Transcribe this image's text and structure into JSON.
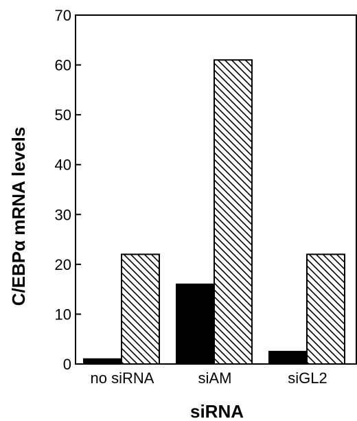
{
  "chart_data": {
    "type": "bar",
    "title": "",
    "xlabel": "siRNA",
    "ylabel": "C/EBPα mRNA levels",
    "categories": [
      "no siRNA",
      "siAM",
      "siGL2"
    ],
    "series": [
      {
        "values": [
          1,
          16,
          2.5
        ],
        "fill": "solid"
      },
      {
        "values": [
          22,
          61,
          22
        ],
        "fill": "hatched"
      }
    ],
    "ylim": [
      0,
      70
    ],
    "yticks": [
      0,
      10,
      20,
      30,
      40,
      50,
      60,
      70
    ],
    "grid": false,
    "colors": {
      "solid": "#000000",
      "hatched_stroke": "#000000",
      "background": "#ffffff"
    }
  }
}
